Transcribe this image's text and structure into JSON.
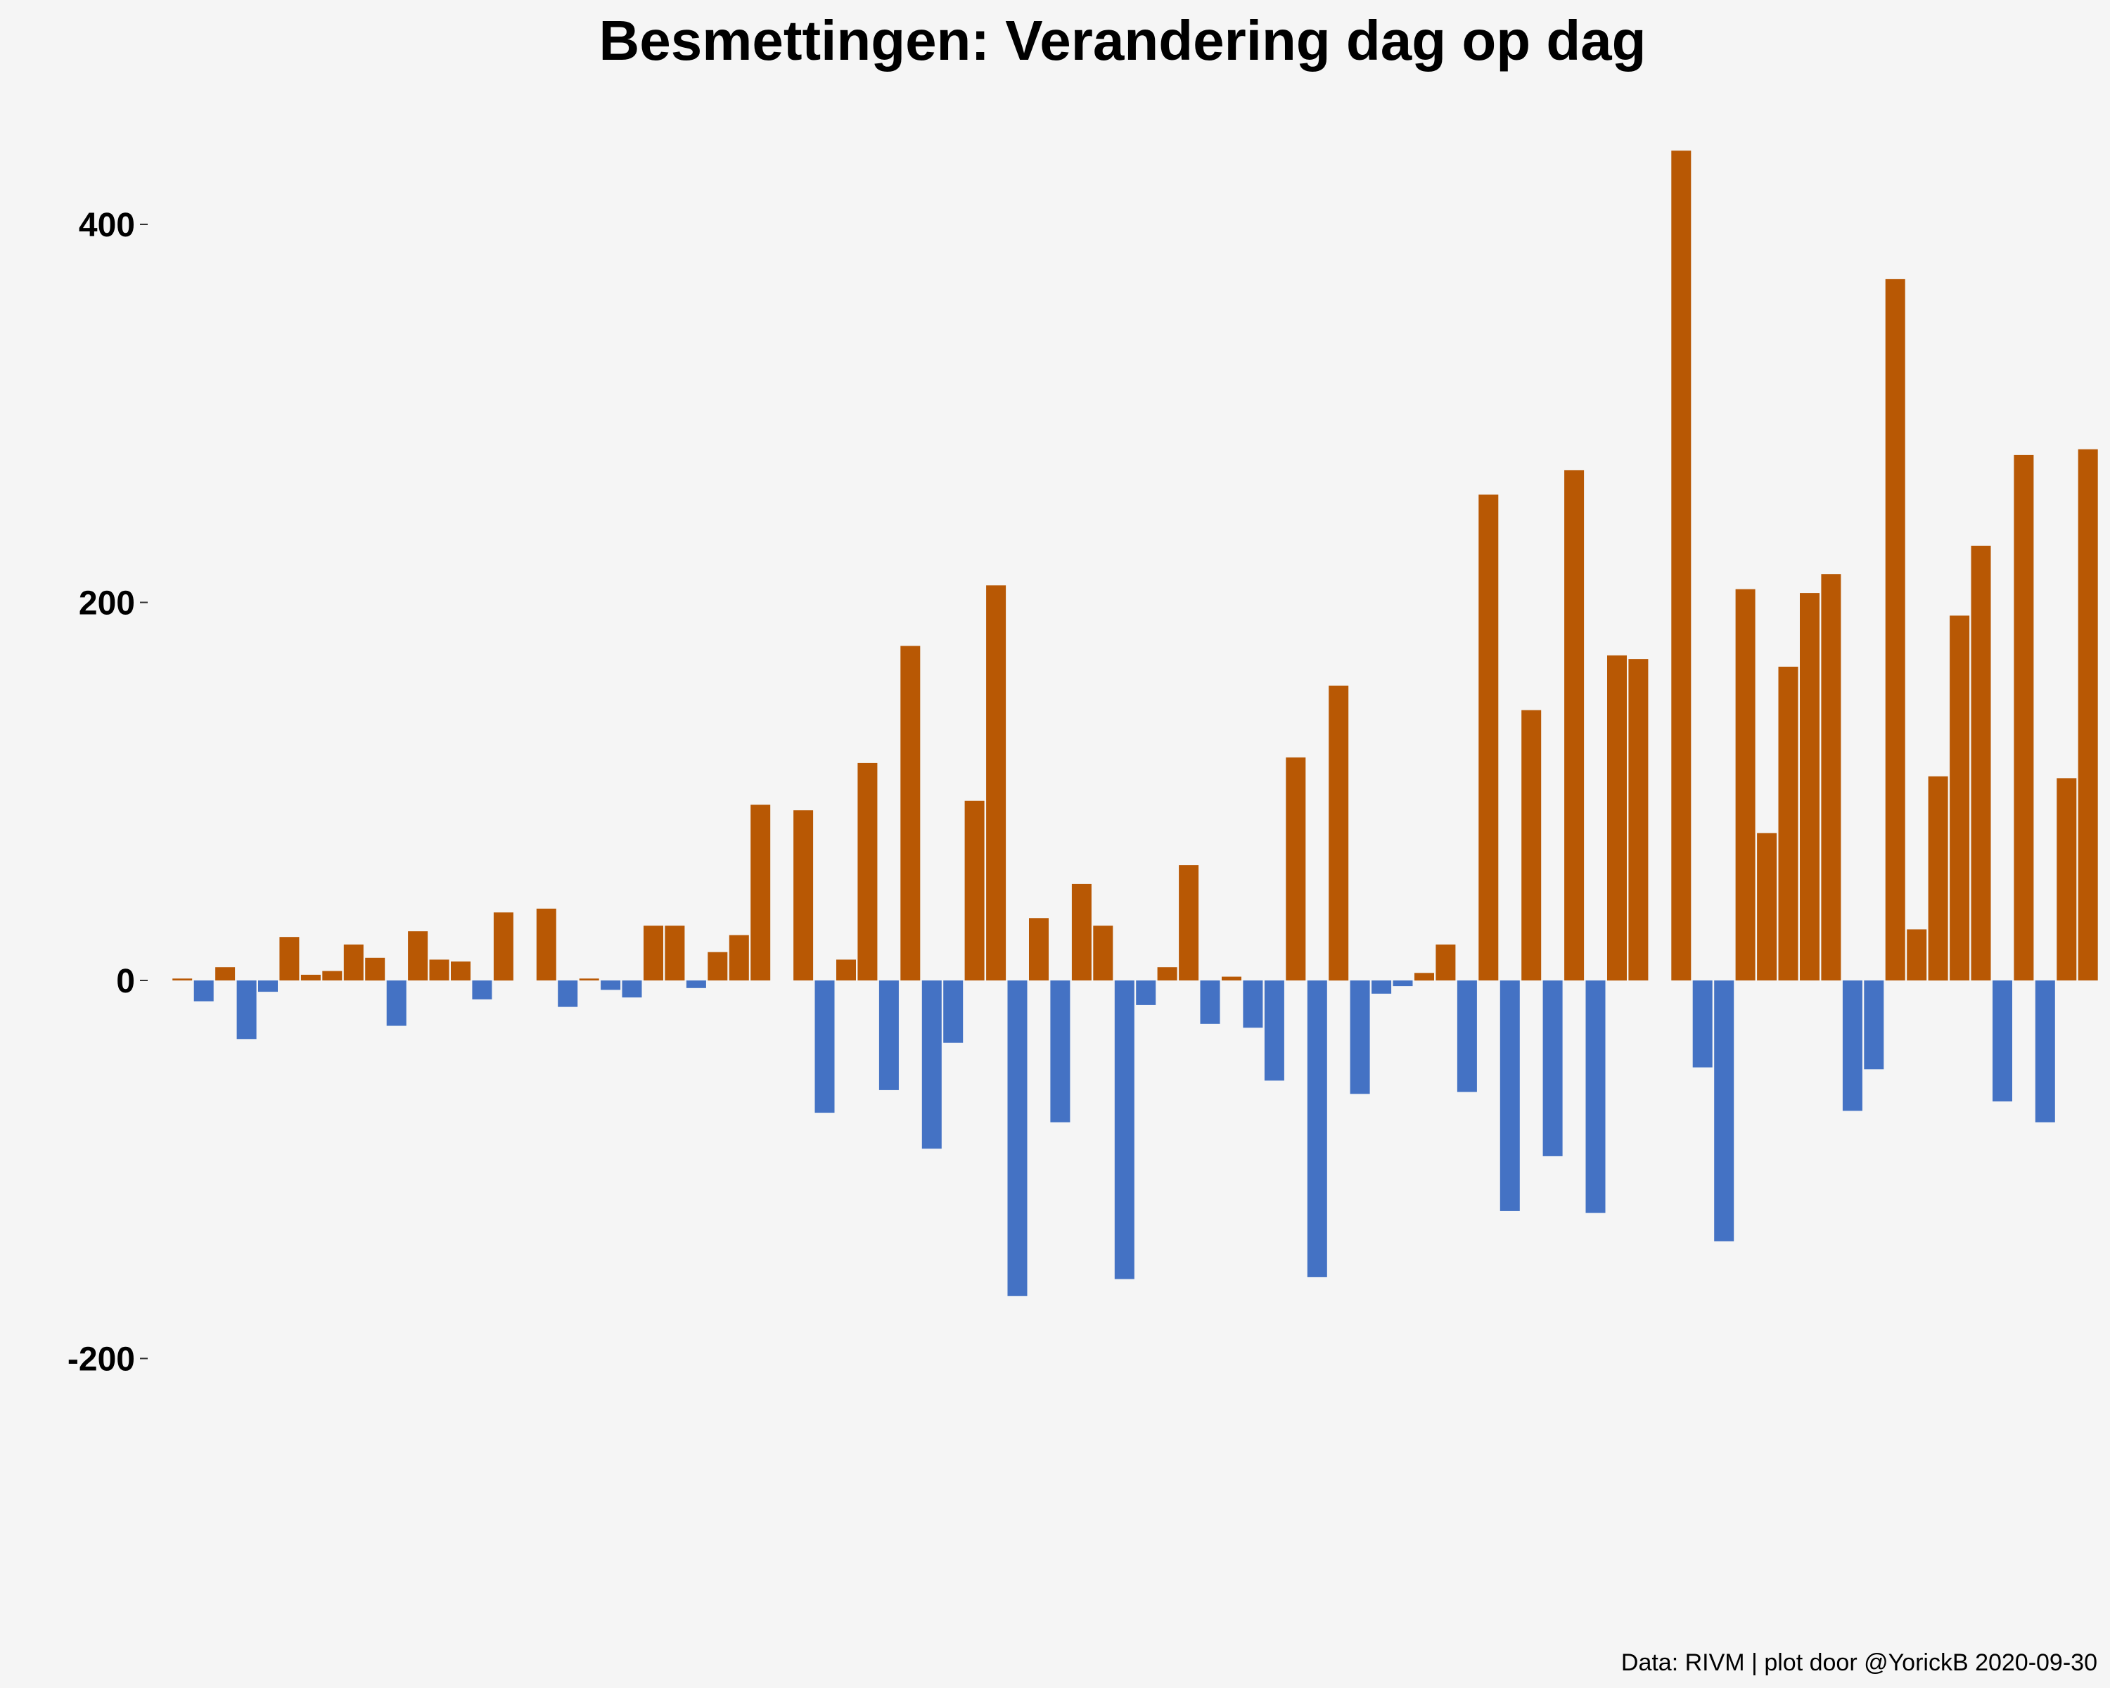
{
  "colors": {
    "background": "#f5f5f5",
    "positive": "#b85804",
    "negative": "#4472c4",
    "text": "#000000"
  },
  "caption": "Data: RIVM | plot door @YorickB  2020-09-30",
  "chart_data": {
    "type": "bar",
    "title": "Besmettingen: Verandering dag op dag",
    "xlabel": "",
    "ylabel": "",
    "ylim": [
      -325,
      450
    ],
    "y_ticks": [
      {
        "value": 400,
        "label": "400"
      },
      {
        "value": 200,
        "label": "200"
      },
      {
        "value": 0,
        "label": "0"
      },
      {
        "value": -200,
        "label": "-200"
      }
    ],
    "grid": false,
    "legend": "none",
    "values": [
      1,
      -11,
      7,
      -31,
      -6,
      23,
      3,
      5,
      19,
      12,
      -24,
      26,
      11,
      10,
      -10,
      36,
      0,
      38,
      -14,
      1,
      -5,
      -9,
      29,
      29,
      -4,
      15,
      24,
      93,
      0,
      90,
      -70,
      11,
      115,
      -58,
      177,
      -89,
      -33,
      95,
      209,
      -167,
      33,
      -75,
      51,
      29,
      -158,
      -13,
      7,
      61,
      -23,
      2,
      -25,
      -53,
      118,
      -157,
      156,
      -60,
      -7,
      -3,
      4,
      19,
      -59,
      257,
      -122,
      143,
      -93,
      270,
      -123,
      172,
      170,
      0,
      439,
      -46,
      -138,
      207,
      78,
      166,
      205,
      215,
      -69,
      -47,
      371,
      27,
      108,
      193,
      230,
      -64,
      278,
      -75,
      107,
      281
    ]
  }
}
